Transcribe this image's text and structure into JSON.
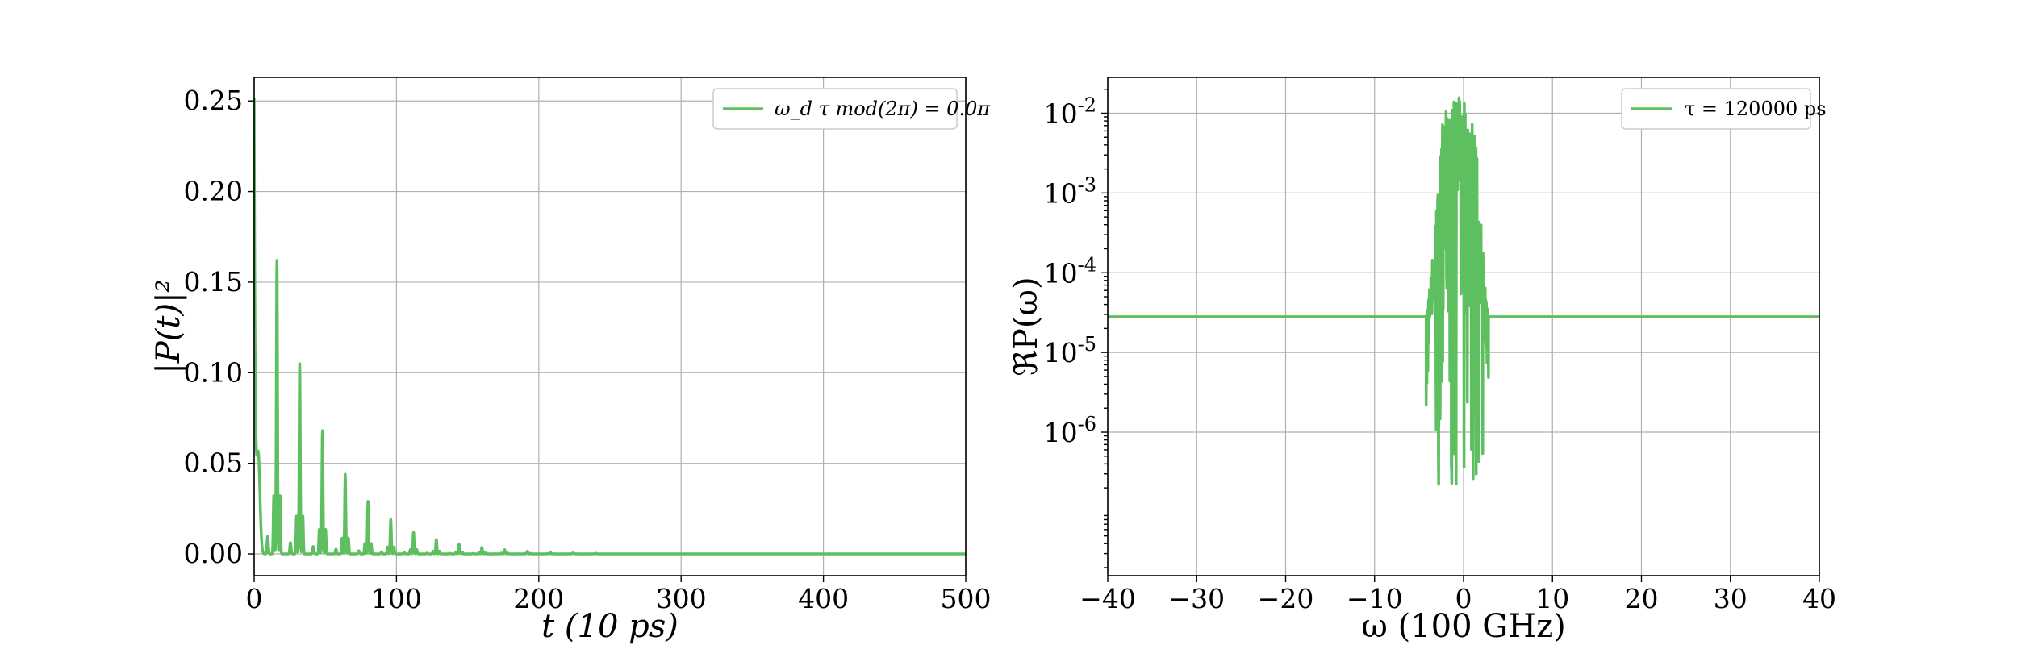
{
  "chart_data": [
    {
      "type": "line",
      "title": "",
      "xlabel": "t (10 ps)",
      "ylabel": "|P(t)|²",
      "xlim": [
        0,
        500
      ],
      "ylim": [
        -0.012,
        0.263
      ],
      "xticks": [
        0,
        100,
        200,
        300,
        400,
        500
      ],
      "xtick_labels": [
        "0",
        "100",
        "200",
        "300",
        "400",
        "500"
      ],
      "yticks": [
        0.0,
        0.05,
        0.1,
        0.15,
        0.2,
        0.25
      ],
      "ytick_labels": [
        "0.00",
        "0.05",
        "0.10",
        "0.15",
        "0.20",
        "0.25"
      ],
      "grid": true,
      "legend_position": "top-right",
      "series": [
        {
          "name": "ω_d τ mod(2π) = 0.0π",
          "color": "#5ebf60",
          "peaks": [
            {
              "t": 0,
              "value": 0.25
            },
            {
              "t": 16,
              "value": 0.162
            },
            {
              "t": 32,
              "value": 0.105
            },
            {
              "t": 48,
              "value": 0.068
            },
            {
              "t": 64,
              "value": 0.044
            },
            {
              "t": 80,
              "value": 0.029
            },
            {
              "t": 96,
              "value": 0.019
            },
            {
              "t": 112,
              "value": 0.012
            },
            {
              "t": 128,
              "value": 0.008
            },
            {
              "t": 144,
              "value": 0.0055
            },
            {
              "t": 160,
              "value": 0.0036
            },
            {
              "t": 176,
              "value": 0.0023
            },
            {
              "t": 192,
              "value": 0.0015
            },
            {
              "t": 208,
              "value": 0.001
            },
            {
              "t": 224,
              "value": 0.0006
            },
            {
              "t": 240,
              "value": 0.0004
            }
          ],
          "baseline": 0.0
        }
      ]
    },
    {
      "type": "line",
      "title": "",
      "xlabel": "ω (100 GHz)",
      "ylabel": "ℜP(ω)",
      "xlim": [
        -40,
        40
      ],
      "ylim_log10": [
        -7.8,
        -1.55
      ],
      "yscale": "log",
      "xticks": [
        -40,
        -30,
        -20,
        -10,
        0,
        10,
        20,
        30,
        40
      ],
      "xtick_labels": [
        "−40",
        "−30",
        "−20",
        "−10",
        "0",
        "10",
        "20",
        "30",
        "40"
      ],
      "yticks": [
        -6,
        -5,
        -4,
        -3,
        -2
      ],
      "ytick_labels": [
        "10-6",
        "10-5",
        "10-4",
        "10-3",
        "10-2"
      ],
      "grid": true,
      "legend_position": "top-right",
      "series": [
        {
          "name": "τ = 120000 ps",
          "color": "#5ebf60",
          "baseline_value": 2.8e-05,
          "active_band": [
            -4.2,
            2.8
          ],
          "max_value": 0.017,
          "min_value": 2.2e-07
        }
      ]
    }
  ]
}
